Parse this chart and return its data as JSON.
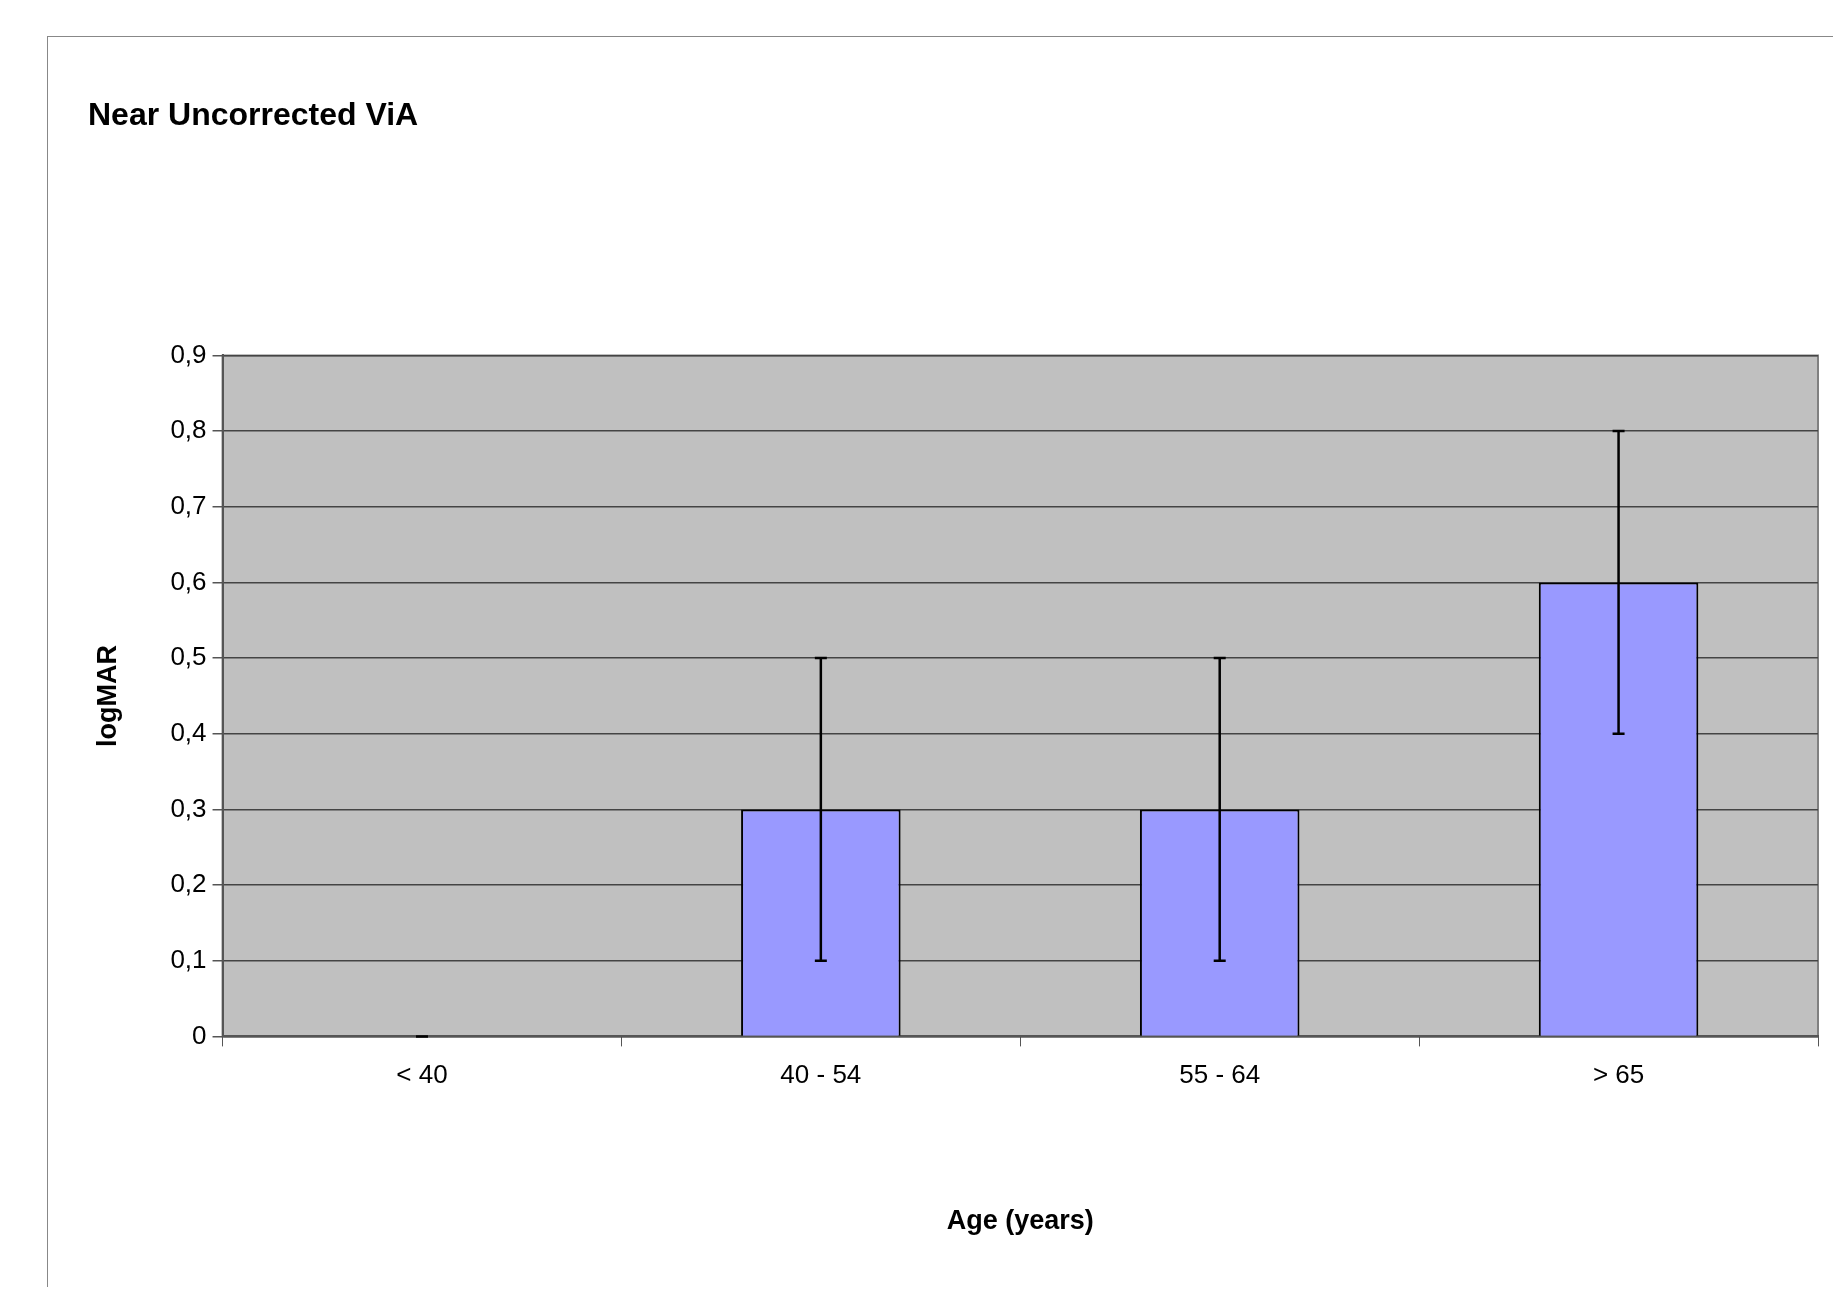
{
  "chart_data": {
    "type": "bar",
    "title": "Near Uncorrected ViA",
    "xlabel": "Age (years)",
    "ylabel": "logMAR",
    "categories": [
      "< 40",
      "40 - 54",
      "55 - 64",
      "> 65"
    ],
    "values": [
      0,
      0.3,
      0.3,
      0.6
    ],
    "errors": [
      0,
      0.2,
      0.2,
      0.2
    ],
    "color": "#9999ff",
    "ylim": [
      0,
      0.9
    ],
    "yticks": [
      0,
      {
        "value": 0.1,
        "label": "0,1"
      },
      {
        "value": 0.2,
        "label": "0,2"
      },
      {
        "value": 0.3,
        "label": "0,3"
      },
      {
        "value": 0.4,
        "label": "0,4"
      },
      {
        "value": 0.5,
        "label": "0,5"
      },
      {
        "value": 0.6,
        "label": "0,6"
      },
      {
        "value": 0.7,
        "label": "0,7"
      },
      {
        "value": 0.8,
        "label": "0,8"
      },
      {
        "value": 0.9,
        "label": "0,9"
      }
    ],
    "grid": "y",
    "legend": false
  }
}
